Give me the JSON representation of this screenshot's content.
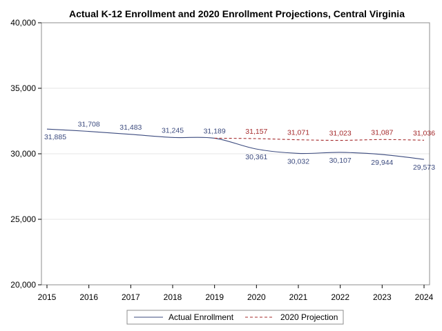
{
  "chart_data": {
    "type": "line",
    "title": "Actual K-12 Enrollment and 2020 Enrollment Projections, Central Virginia",
    "xlabel": "",
    "ylabel": "",
    "x": [
      2015,
      2016,
      2017,
      2018,
      2019,
      2020,
      2021,
      2022,
      2023,
      2024
    ],
    "xlim": [
      2015,
      2024
    ],
    "ylim": [
      20000,
      40000
    ],
    "yticks": [
      20000,
      25000,
      30000,
      35000,
      40000
    ],
    "ytick_labels": [
      "20,000",
      "25,000",
      "30,000",
      "35,000",
      "40,000"
    ],
    "xtick_labels": [
      "2015",
      "2016",
      "2017",
      "2018",
      "2019",
      "2020",
      "2021",
      "2022",
      "2023",
      "2024"
    ],
    "grid": "horizontal",
    "legend_position": "bottom",
    "series": [
      {
        "name": "Actual Enrollment",
        "color": "#3b4a7e",
        "dash": "solid",
        "x": [
          2015,
          2016,
          2017,
          2018,
          2019,
          2020,
          2021,
          2022,
          2023,
          2024
        ],
        "values": [
          31885,
          31708,
          31483,
          31245,
          31189,
          30361,
          30032,
          30107,
          29944,
          29573
        ],
        "labels": [
          "31,885",
          "31,708",
          "31,483",
          "31,245",
          "31,189",
          "30,361",
          "30,032",
          "30,107",
          "29,944",
          "29,573"
        ],
        "label_side": [
          "below",
          "above",
          "above",
          "above",
          "above",
          "below",
          "below",
          "below",
          "below",
          "below"
        ]
      },
      {
        "name": "2020 Projection",
        "color": "#a4282a",
        "dash": "dashed",
        "x": [
          2019,
          2020,
          2021,
          2022,
          2023,
          2024
        ],
        "values": [
          31189,
          31157,
          31071,
          31023,
          31087,
          31036
        ],
        "labels": [
          "",
          "31,157",
          "31,071",
          "31,023",
          "31,087",
          "31,036"
        ],
        "label_side": [
          "none",
          "above",
          "above",
          "above",
          "above",
          "above"
        ]
      }
    ]
  }
}
